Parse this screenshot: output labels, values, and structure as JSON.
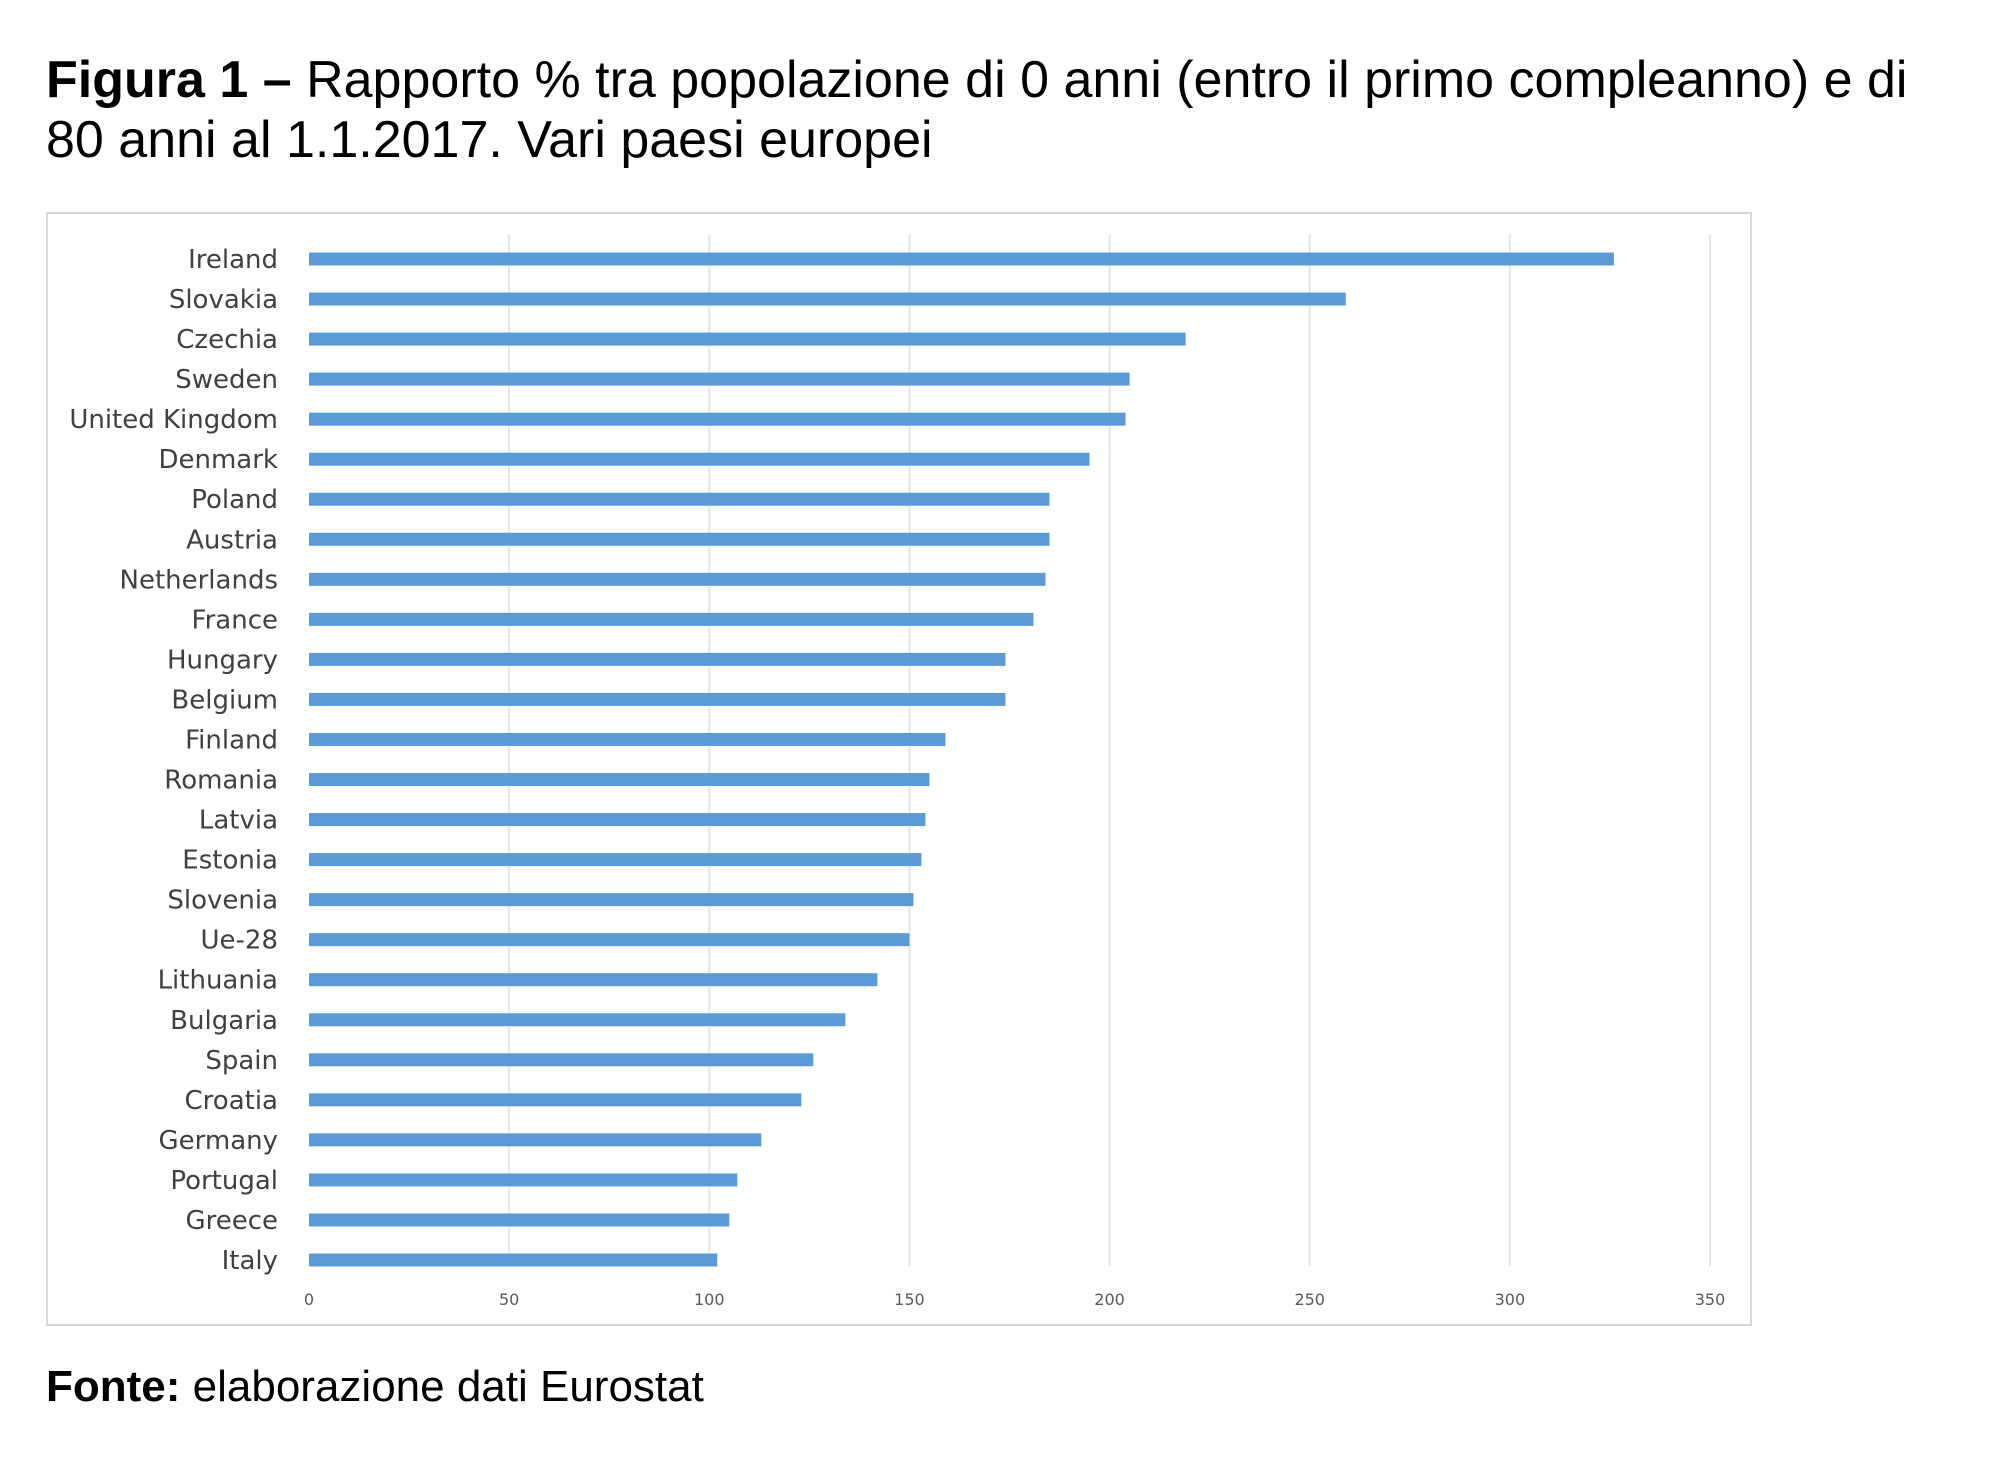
{
  "title": {
    "lead": "Figura 1 –",
    "text": " Rapporto % tra popolazione di 0 anni (entro il primo compleanno) e di 80 anni al 1.1.2017. Vari paesi europei"
  },
  "source": {
    "lead": "Fonte:",
    "text": " elaborazione dati Eurostat"
  },
  "chart_data": {
    "type": "bar",
    "orientation": "horizontal",
    "categories": [
      "Ireland",
      "Slovakia",
      "Czechia",
      "Sweden",
      "United Kingdom",
      "Denmark",
      "Poland",
      "Austria",
      "Netherlands",
      "France",
      "Hungary",
      "Belgium",
      "Finland",
      "Romania",
      "Latvia",
      "Estonia",
      "Slovenia",
      "Ue-28",
      "Lithuania",
      "Bulgaria",
      "Spain",
      "Croatia",
      "Germany",
      "Portugal",
      "Greece",
      "Italy"
    ],
    "values": [
      326,
      259,
      219,
      205,
      204,
      195,
      185,
      185,
      184,
      181,
      174,
      174,
      159,
      155,
      154,
      153,
      151,
      150,
      142,
      134,
      126,
      123,
      113,
      107,
      105,
      102
    ],
    "xlim": [
      0,
      350
    ],
    "xticks": [
      0,
      50,
      100,
      150,
      200,
      250,
      300,
      350
    ],
    "grid": true,
    "bar_color": "#5b9bd5",
    "grid_color": "#e6e6e6"
  }
}
